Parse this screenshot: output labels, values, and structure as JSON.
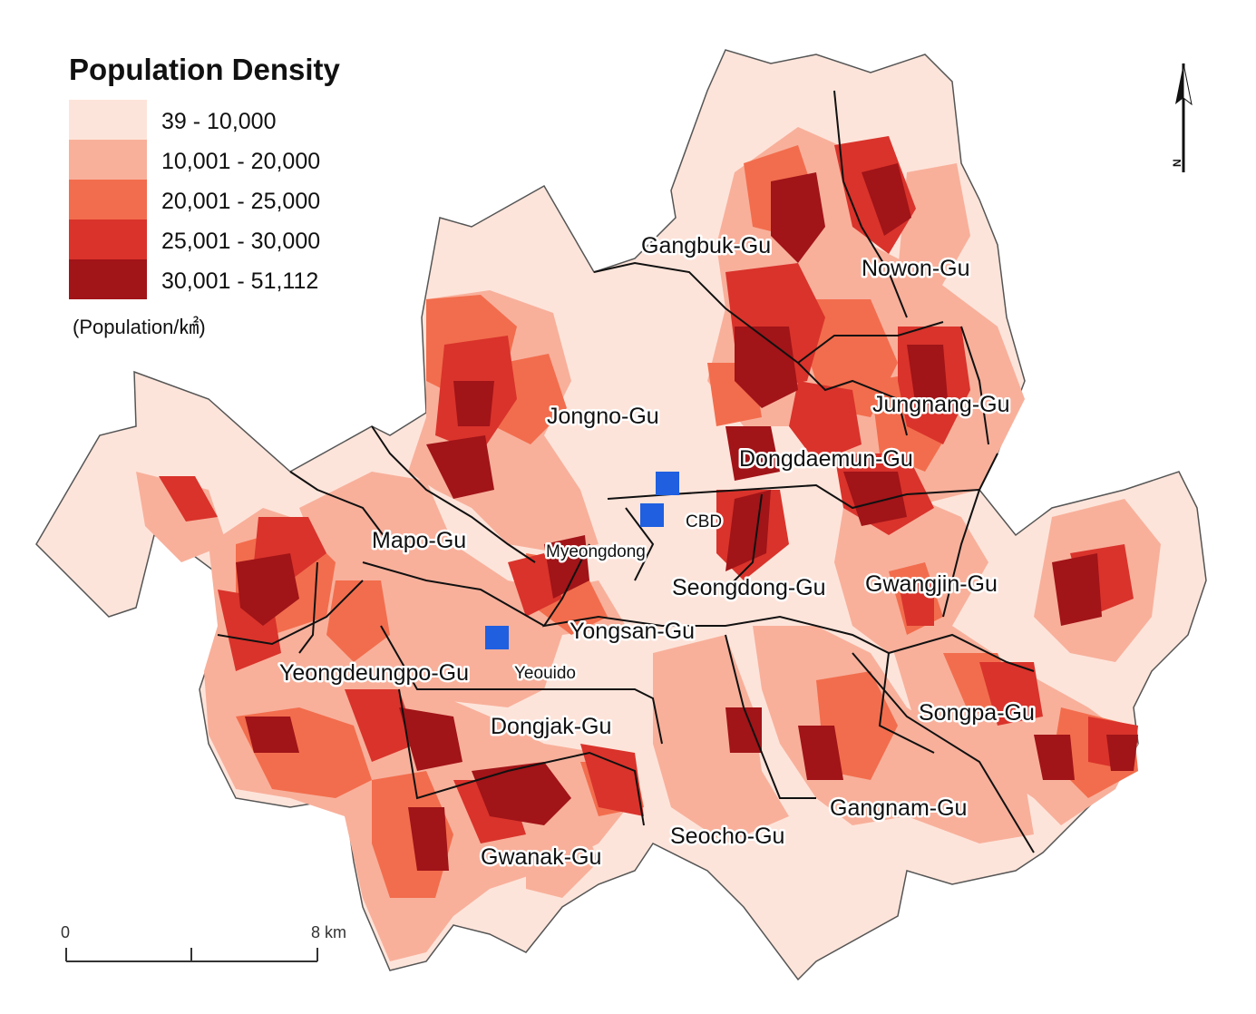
{
  "legend": {
    "title": "Population Density",
    "classes": [
      {
        "label": "39 - 10,000",
        "color": "#fde4da"
      },
      {
        "label": "10,001 - 20,000",
        "color": "#f8b09b"
      },
      {
        "label": "20,001 - 25,000",
        "color": "#f26d4d"
      },
      {
        "label": "25,001 - 30,000",
        "color": "#d9332b"
      },
      {
        "label": "30,001 - 51,112",
        "color": "#a11418"
      }
    ],
    "unit": "(Population/㎢)"
  },
  "districts": [
    {
      "id": "gangbuk",
      "label": "Gangbuk-Gu",
      "class": 1
    },
    {
      "id": "nowon",
      "label": "Nowon-Gu",
      "class": 1
    },
    {
      "id": "jungnang",
      "label": "Jungnang-Gu",
      "class": 2
    },
    {
      "id": "jongno",
      "label": "Jongno-Gu",
      "class": 0
    },
    {
      "id": "dongdaemun",
      "label": "Dongdaemun-Gu",
      "class": 2
    },
    {
      "id": "mapo",
      "label": "Mapo-Gu",
      "class": 1
    },
    {
      "id": "seongdong",
      "label": "Seongdong-Gu",
      "class": 1
    },
    {
      "id": "gwangjin",
      "label": "Gwangjin-Gu",
      "class": 1
    },
    {
      "id": "yongsan",
      "label": "Yongsan-Gu",
      "class": 0
    },
    {
      "id": "yeongdeungpo",
      "label": "Yeongdeungpo-Gu",
      "class": 1
    },
    {
      "id": "dongjak",
      "label": "Dongjak-Gu",
      "class": 2
    },
    {
      "id": "songpa",
      "label": "Songpa-Gu",
      "class": 1
    },
    {
      "id": "gangnam",
      "label": "Gangnam-Gu",
      "class": 1
    },
    {
      "id": "seocho",
      "label": "Seocho-Gu",
      "class": 0
    },
    {
      "id": "gwanak",
      "label": "Gwanak-Gu",
      "class": 3
    }
  ],
  "places": {
    "cbd": "CBD",
    "myeongdong": "Myeongdong",
    "yeouido": "Yeouido"
  },
  "markers": {
    "color": "#1f5fe0"
  },
  "scale": {
    "start": "0",
    "end": "8 km"
  },
  "north": {
    "label": "N"
  }
}
